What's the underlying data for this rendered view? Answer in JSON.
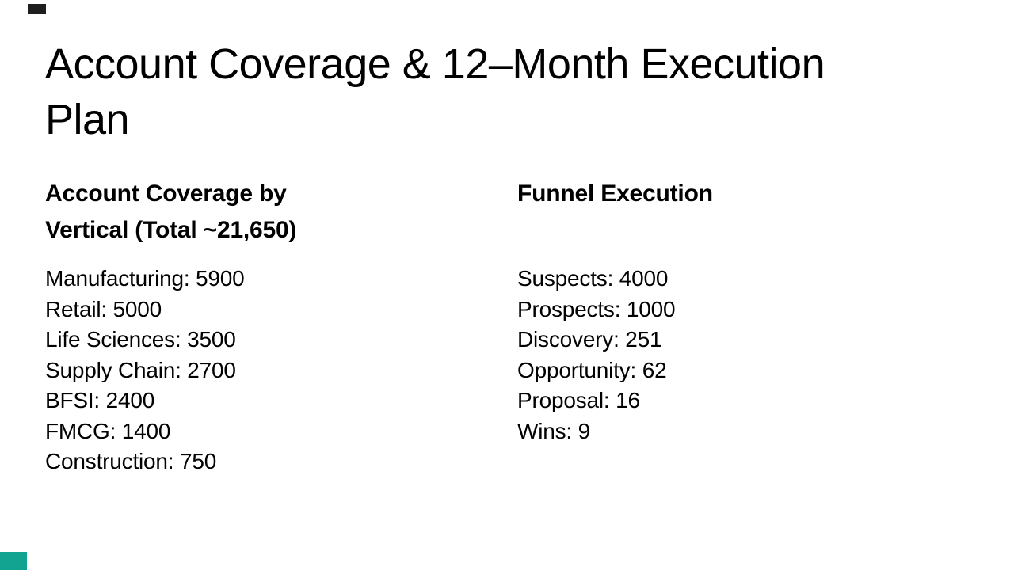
{
  "slide": {
    "title": {
      "line1": "Account Coverage & 12–Month Execution",
      "line2": "Plan"
    },
    "accent_colors": {
      "top_mark": "#1e1e1e",
      "bottom_mark": "#12a491"
    },
    "columns": [
      {
        "heading_lines": [
          "Account Coverage by",
          "Vertical (Total ~21,650)"
        ],
        "items": [
          "Manufacturing: 5900",
          "Retail: 5000",
          "Life Sciences: 3500",
          "Supply Chain: 2700",
          "BFSI: 2400",
          "FMCG: 1400",
          "Construction: 750"
        ]
      },
      {
        "heading_lines": [
          "Funnel Execution"
        ],
        "items": [
          "Suspects: 4000",
          "Prospects: 1000",
          "Discovery: 251",
          "Opportunity: 62",
          "Proposal: 16",
          "Wins: 9"
        ]
      }
    ]
  }
}
